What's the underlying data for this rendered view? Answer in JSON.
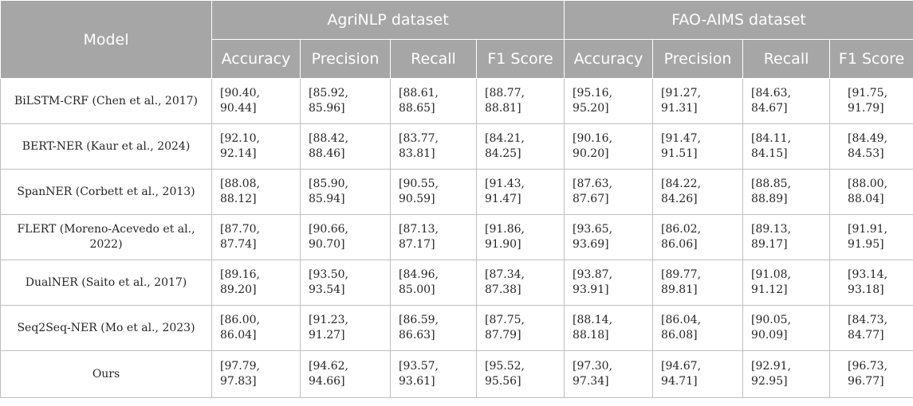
{
  "header": {
    "model": "Model",
    "groups": [
      "AgriNLP dataset",
      "FAO-AIMS dataset"
    ],
    "metrics": [
      "Accuracy",
      "Precision",
      "Recall",
      "F1 Score",
      "Accuracy",
      "Precision",
      "Recall",
      "F1 Score"
    ]
  },
  "rows": [
    {
      "model": "BiLSTM-CRF (Chen et al., 2017)",
      "values": [
        "[90.40, 90.44]",
        "[85.92, 85.96]",
        "[88.61, 88.65]",
        "[88.77, 88.81]",
        "[95.16, 95.20]",
        "[91.27, 91.31]",
        "[84.63, 84.67]",
        "[91.75, 91.79]"
      ]
    },
    {
      "model": "BERT-NER (Kaur et al., 2024)",
      "values": [
        "[92.10, 92.14]",
        "[88.42, 88.46]",
        "[83.77, 83.81]",
        "[84.21, 84.25]",
        "[90.16, 90.20]",
        "[91.47, 91.51]",
        "[84.11, 84.15]",
        "[84.49, 84.53]"
      ]
    },
    {
      "model": "SpanNER (Corbett et al., 2013)",
      "values": [
        "[88.08, 88.12]",
        "[85.90, 85.94]",
        "[90.55, 90.59]",
        "[91.43, 91.47]",
        "[87.63, 87.67]",
        "[84.22, 84.26]",
        "[88.85, 88.89]",
        "[88.00, 88.04]"
      ]
    },
    {
      "model": "FLERT (Moreno-Acevedo et al., 2022)",
      "values": [
        "[87.70, 87.74]",
        "[90.66, 90.70]",
        "[87.13, 87.17]",
        "[91.86, 91.90]",
        "[93.65, 93.69]",
        "[86.02, 86.06]",
        "[89.13, 89.17]",
        "[91.91, 91.95]"
      ]
    },
    {
      "model": "DualNER (Saito et al., 2017)",
      "values": [
        "[89.16, 89.20]",
        "[93.50, 93.54]",
        "[84.96, 85.00]",
        "[87.34, 87.38]",
        "[93.87, 93.91]",
        "[89.77, 89.81]",
        "[91.08, 91.12]",
        "[93.14, 93.18]"
      ]
    },
    {
      "model": "Seq2Seq-NER (Mo et al., 2023)",
      "values": [
        "[86.00, 86.04]",
        "[91.23, 91.27]",
        "[86.59, 86.63]",
        "[87.75, 87.79]",
        "[88.14, 88.18]",
        "[86.04, 86.08]",
        "[90.05, 90.09]",
        "[84.73, 84.77]"
      ]
    },
    {
      "model": "Ours",
      "values": [
        "[97.79, 97.83]",
        "[94.62, 94.66]",
        "[93.57, 93.61]",
        "[95.52, 95.56]",
        "[97.30, 97.34]",
        "[94.67, 94.71]",
        "[92.91, 92.95]",
        "[96.73, 96.77]"
      ]
    }
  ]
}
